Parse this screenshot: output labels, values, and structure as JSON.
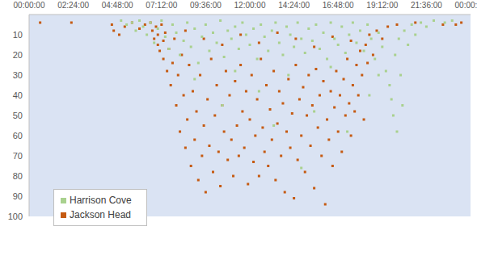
{
  "chart_data": {
    "type": "scatter",
    "xlim": [
      0,
      24
    ],
    "xticks": [
      {
        "value": 0,
        "label": "00:00:00"
      },
      {
        "value": 2.4,
        "label": "02:24:00"
      },
      {
        "value": 4.8,
        "label": "04:48:00"
      },
      {
        "value": 7.2,
        "label": "07:12:00"
      },
      {
        "value": 9.6,
        "label": "09:36:00"
      },
      {
        "value": 12,
        "label": "12:00:00"
      },
      {
        "value": 14.4,
        "label": "14:24:00"
      },
      {
        "value": 16.8,
        "label": "16:48:00"
      },
      {
        "value": 19.2,
        "label": "19:12:00"
      },
      {
        "value": 21.6,
        "label": "21:36:00"
      },
      {
        "value": 24,
        "label": "00:00:00"
      }
    ],
    "ylim": [
      0,
      100
    ],
    "yticks": [
      10,
      20,
      30,
      40,
      50,
      60,
      70,
      80,
      90,
      100
    ],
    "grid": false,
    "legend": "lower left",
    "marker": "square",
    "series": [
      {
        "name": "Jackson Head",
        "color": "#c55a11",
        "x": [
          0.6,
          2.3,
          4.5,
          4.6,
          4.9,
          5.2,
          5.6,
          6.0,
          6.3,
          6.6,
          6.7,
          6.8,
          6.9,
          7.0,
          7.0,
          7.1,
          7.2,
          7.3,
          7.3,
          7.4,
          7.5,
          7.6,
          7.7,
          7.8,
          7.9,
          8.0,
          8.1,
          8.2,
          8.3,
          8.4,
          8.5,
          8.6,
          8.7,
          8.8,
          8.9,
          9.0,
          9.1,
          9.2,
          9.3,
          9.4,
          9.5,
          9.6,
          9.7,
          9.8,
          9.9,
          10.0,
          10.1,
          10.2,
          10.3,
          10.4,
          10.5,
          10.6,
          10.7,
          10.8,
          10.9,
          11.0,
          11.1,
          11.2,
          11.3,
          11.4,
          11.5,
          11.6,
          11.7,
          11.8,
          11.9,
          12.0,
          12.1,
          12.2,
          12.3,
          12.4,
          12.5,
          12.6,
          12.7,
          12.8,
          12.9,
          13.0,
          13.1,
          13.2,
          13.3,
          13.4,
          13.5,
          13.6,
          13.7,
          13.8,
          13.9,
          14.0,
          14.1,
          14.2,
          14.3,
          14.4,
          14.5,
          14.6,
          14.7,
          14.8,
          14.9,
          15.0,
          15.1,
          15.2,
          15.3,
          15.4,
          15.5,
          15.6,
          15.7,
          15.8,
          15.9,
          16.0,
          16.1,
          16.2,
          16.3,
          16.4,
          16.5,
          16.6,
          16.7,
          16.8,
          16.9,
          17.0,
          17.1,
          17.2,
          17.3,
          17.4,
          17.5,
          17.6,
          17.7,
          17.8,
          17.9,
          18.0,
          18.1,
          18.2,
          18.3,
          18.4,
          18.5,
          18.7,
          18.9,
          19.2,
          19.5,
          20.0,
          21.0,
          22.5,
          23.2,
          23.5,
          8.5,
          9.5,
          10.5,
          11.5,
          12.5,
          13.5,
          14.5,
          15.5,
          16.5,
          17.5
        ],
        "values": [
          4,
          4,
          5,
          8,
          10,
          6,
          4,
          7,
          5,
          4,
          8,
          12,
          6,
          15,
          10,
          18,
          5,
          22,
          13,
          9,
          28,
          17,
          35,
          24,
          12,
          45,
          30,
          58,
          20,
          40,
          66,
          52,
          25,
          75,
          38,
          62,
          48,
          82,
          30,
          70,
          55,
          88,
          42,
          65,
          22,
          78,
          50,
          35,
          68,
          85,
          45,
          58,
          28,
          72,
          40,
          62,
          80,
          33,
          55,
          70,
          25,
          48,
          66,
          38,
          84,
          52,
          30,
          73,
          60,
          42,
          80,
          22,
          56,
          68,
          35,
          75,
          47,
          62,
          28,
          82,
          54,
          38,
          70,
          44,
          88,
          58,
          32,
          66,
          49,
          91,
          25,
          72,
          42,
          60,
          36,
          78,
          50,
          30,
          65,
          45,
          86,
          27,
          56,
          40,
          70,
          33,
          94,
          52,
          62,
          38,
          75,
          46,
          28,
          58,
          40,
          68,
          32,
          50,
          22,
          44,
          60,
          35,
          48,
          25,
          40,
          18,
          30,
          52,
          15,
          24,
          10,
          20,
          8,
          12,
          6,
          5,
          4,
          5,
          5,
          4,
          8,
          12,
          15,
          10,
          14,
          9,
          12,
          16,
          11,
          13
        ]
      },
      {
        "name": "Harrison Cove",
        "color": "#a9d18e",
        "x": [
          5.0,
          5.3,
          5.6,
          5.8,
          6.0,
          6.2,
          6.4,
          6.6,
          6.8,
          7.0,
          7.2,
          7.4,
          7.6,
          7.8,
          8.0,
          8.2,
          8.4,
          8.6,
          8.8,
          9.0,
          9.2,
          9.4,
          9.6,
          9.8,
          10.0,
          10.2,
          10.4,
          10.6,
          10.8,
          11.0,
          11.2,
          11.4,
          11.6,
          11.8,
          12.0,
          12.2,
          12.4,
          12.6,
          12.8,
          13.0,
          13.2,
          13.4,
          13.6,
          13.8,
          14.0,
          14.2,
          14.4,
          14.6,
          14.8,
          15.0,
          15.2,
          15.4,
          15.6,
          15.8,
          16.0,
          16.2,
          16.4,
          16.6,
          16.8,
          17.0,
          17.2,
          17.4,
          17.6,
          17.8,
          18.0,
          18.2,
          18.4,
          18.6,
          18.8,
          19.0,
          19.2,
          19.4,
          19.6,
          19.7,
          19.8,
          19.9,
          20.0,
          20.1,
          20.2,
          20.3,
          20.4,
          20.6,
          20.8,
          21.0,
          21.3,
          21.6,
          22.0,
          22.6,
          23.0,
          9.0,
          10.5,
          11.2,
          12.5,
          13.3,
          14.1,
          15.5,
          16.4,
          17.3,
          18.5,
          14.8,
          19.0
        ],
        "values": [
          3,
          5,
          4,
          8,
          3,
          6,
          10,
          4,
          14,
          7,
          3,
          11,
          17,
          5,
          9,
          20,
          13,
          4,
          16,
          7,
          24,
          11,
          5,
          18,
          9,
          14,
          3,
          21,
          8,
          12,
          6,
          17,
          4,
          10,
          15,
          7,
          22,
          5,
          11,
          18,
          8,
          4,
          14,
          20,
          6,
          10,
          16,
          4,
          12,
          19,
          7,
          13,
          5,
          17,
          9,
          22,
          4,
          12,
          15,
          6,
          19,
          10,
          4,
          14,
          8,
          18,
          5,
          12,
          22,
          9,
          16,
          28,
          35,
          42,
          50,
          20,
          58,
          12,
          30,
          45,
          8,
          15,
          5,
          10,
          4,
          6,
          3,
          4,
          3,
          32,
          45,
          28,
          38,
          55,
          30,
          48,
          26,
          58,
          40,
          76,
          30
        ]
      }
    ]
  }
}
